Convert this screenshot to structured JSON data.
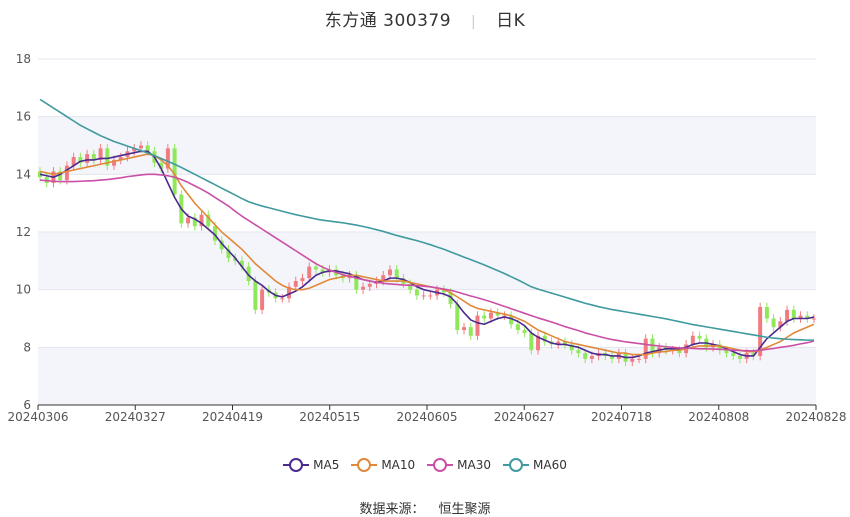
{
  "title": {
    "name": "东方通",
    "code": "300379",
    "period": "日K"
  },
  "source": {
    "label": "数据来源：",
    "value": "恒生聚源"
  },
  "legend": [
    {
      "name": "MA5",
      "color": "#4b2a8f"
    },
    {
      "name": "MA10",
      "color": "#e0893a"
    },
    {
      "name": "MA30",
      "color": "#cc4fa6"
    },
    {
      "name": "MA60",
      "color": "#3f9aa0"
    }
  ],
  "chart_data": {
    "type": "candlestick",
    "x_tick_labels": [
      "20240306",
      "20240327",
      "20240419",
      "20240515",
      "20240605",
      "20240627",
      "20240718",
      "20240808",
      "20240828"
    ],
    "ylim": [
      6,
      18
    ],
    "y_ticks": [
      6,
      8,
      10,
      12,
      14,
      16,
      18
    ],
    "grid": true,
    "legend_position": "bottom",
    "up_color": "#f07c82",
    "down_color": "#8fe85a",
    "candles_close": [
      13.9,
      13.7,
      14.1,
      13.8,
      14.3,
      14.6,
      14.4,
      14.7,
      14.5,
      14.9,
      14.3,
      14.5,
      14.6,
      14.8,
      14.9,
      15.0,
      14.8,
      14.4,
      14.2,
      14.9,
      13.3,
      12.3,
      12.5,
      12.2,
      12.6,
      12.2,
      11.7,
      11.4,
      11.1,
      11.0,
      10.8,
      10.3,
      9.3,
      10.0,
      9.9,
      9.7,
      9.7,
      10.1,
      10.3,
      10.4,
      10.8,
      10.7,
      10.6,
      10.7,
      10.5,
      10.4,
      10.5,
      10.0,
      10.1,
      10.2,
      10.3,
      10.5,
      10.7,
      10.4,
      10.2,
      10.0,
      9.8,
      9.8,
      9.8,
      10.0,
      9.9,
      9.5,
      8.6,
      8.7,
      8.4,
      9.1,
      9.0,
      9.2,
      9.1,
      9.1,
      8.8,
      8.6,
      8.5,
      7.9,
      8.4,
      8.2,
      8.1,
      8.2,
      8.1,
      7.9,
      7.8,
      7.6,
      7.7,
      7.8,
      7.7,
      7.6,
      7.8,
      7.5,
      7.6,
      7.6,
      8.3,
      7.8,
      8.0,
      7.9,
      7.9,
      7.8,
      8.1,
      8.4,
      8.3,
      8.0,
      8.1,
      7.9,
      7.8,
      7.7,
      7.6,
      7.8,
      7.7,
      9.4,
      9.0,
      8.7,
      8.9,
      9.3,
      9.0,
      9.1,
      9.0,
      9.0
    ],
    "series": [
      {
        "name": "MA5",
        "values": [
          14.0,
          13.95,
          13.9,
          14.0,
          14.15,
          14.3,
          14.45,
          14.5,
          14.5,
          14.55,
          14.55,
          14.6,
          14.65,
          14.7,
          14.75,
          14.8,
          14.8,
          14.6,
          14.2,
          13.7,
          13.2,
          12.8,
          12.55,
          12.45,
          12.3,
          12.1,
          11.9,
          11.6,
          11.35,
          11.1,
          10.8,
          10.5,
          10.3,
          10.15,
          9.95,
          9.8,
          9.75,
          9.85,
          9.95,
          10.1,
          10.3,
          10.5,
          10.6,
          10.65,
          10.65,
          10.6,
          10.55,
          10.45,
          10.35,
          10.3,
          10.25,
          10.3,
          10.4,
          10.4,
          10.35,
          10.25,
          10.1,
          10.0,
          9.95,
          9.9,
          9.85,
          9.75,
          9.5,
          9.2,
          8.95,
          8.85,
          8.8,
          8.9,
          9.0,
          9.05,
          9.0,
          8.9,
          8.75,
          8.5,
          8.35,
          8.25,
          8.15,
          8.1,
          8.1,
          8.05,
          8.0,
          7.9,
          7.8,
          7.75,
          7.75,
          7.7,
          7.7,
          7.65,
          7.65,
          7.7,
          7.8,
          7.85,
          7.9,
          7.95,
          7.95,
          7.95,
          8.0,
          8.1,
          8.15,
          8.15,
          8.1,
          8.05,
          7.95,
          7.85,
          7.75,
          7.7,
          7.7,
          8.0,
          8.3,
          8.5,
          8.7,
          8.9,
          9.0,
          9.0,
          9.0,
          9.05
        ]
      },
      {
        "name": "MA10",
        "values": [
          14.1,
          14.05,
          14.0,
          14.05,
          14.1,
          14.15,
          14.2,
          14.25,
          14.3,
          14.35,
          14.4,
          14.45,
          14.5,
          14.55,
          14.6,
          14.65,
          14.7,
          14.65,
          14.5,
          14.3,
          14.0,
          13.6,
          13.3,
          13.0,
          12.75,
          12.5,
          12.25,
          12.0,
          11.8,
          11.6,
          11.4,
          11.15,
          10.9,
          10.7,
          10.5,
          10.3,
          10.15,
          10.05,
          10.0,
          10.0,
          10.05,
          10.15,
          10.25,
          10.35,
          10.4,
          10.45,
          10.5,
          10.5,
          10.45,
          10.4,
          10.35,
          10.3,
          10.3,
          10.3,
          10.3,
          10.25,
          10.2,
          10.15,
          10.1,
          10.05,
          10.0,
          9.9,
          9.75,
          9.6,
          9.45,
          9.35,
          9.3,
          9.25,
          9.2,
          9.15,
          9.1,
          9.0,
          8.9,
          8.75,
          8.6,
          8.5,
          8.4,
          8.3,
          8.2,
          8.15,
          8.1,
          8.05,
          8.0,
          7.95,
          7.9,
          7.85,
          7.8,
          7.8,
          7.75,
          7.75,
          7.75,
          7.8,
          7.85,
          7.85,
          7.9,
          7.9,
          7.95,
          8.0,
          8.05,
          8.05,
          8.05,
          8.05,
          8.0,
          7.95,
          7.9,
          7.85,
          7.85,
          7.9,
          8.0,
          8.1,
          8.2,
          8.35,
          8.5,
          8.6,
          8.7,
          8.8
        ]
      },
      {
        "name": "MA30",
        "values": [
          13.8,
          13.78,
          13.76,
          13.75,
          13.75,
          13.75,
          13.76,
          13.77,
          13.78,
          13.8,
          13.82,
          13.85,
          13.88,
          13.92,
          13.95,
          13.98,
          14.0,
          14.0,
          13.98,
          13.95,
          13.9,
          13.82,
          13.72,
          13.6,
          13.48,
          13.35,
          13.2,
          13.05,
          12.9,
          12.72,
          12.55,
          12.4,
          12.25,
          12.1,
          11.95,
          11.8,
          11.65,
          11.5,
          11.35,
          11.2,
          11.05,
          10.9,
          10.78,
          10.68,
          10.6,
          10.52,
          10.46,
          10.4,
          10.35,
          10.3,
          10.26,
          10.22,
          10.2,
          10.18,
          10.16,
          10.15,
          10.14,
          10.12,
          10.1,
          10.06,
          10.02,
          9.98,
          9.92,
          9.85,
          9.78,
          9.72,
          9.65,
          9.58,
          9.5,
          9.42,
          9.34,
          9.26,
          9.18,
          9.1,
          9.02,
          8.95,
          8.88,
          8.8,
          8.72,
          8.65,
          8.58,
          8.5,
          8.44,
          8.38,
          8.32,
          8.27,
          8.23,
          8.19,
          8.16,
          8.13,
          8.1,
          8.07,
          8.05,
          8.02,
          8.0,
          7.98,
          7.97,
          7.96,
          7.95,
          7.95,
          7.94,
          7.93,
          7.92,
          7.9,
          7.89,
          7.88,
          7.88,
          7.9,
          7.93,
          7.96,
          8.0,
          8.03,
          8.07,
          8.12,
          8.16,
          8.22
        ]
      },
      {
        "name": "MA60",
        "values": [
          16.6,
          16.45,
          16.3,
          16.15,
          16.0,
          15.85,
          15.7,
          15.58,
          15.46,
          15.34,
          15.24,
          15.14,
          15.06,
          14.98,
          14.9,
          14.82,
          14.74,
          14.65,
          14.55,
          14.45,
          14.35,
          14.24,
          14.12,
          14.0,
          13.88,
          13.76,
          13.64,
          13.52,
          13.4,
          13.28,
          13.16,
          13.05,
          12.97,
          12.9,
          12.84,
          12.78,
          12.72,
          12.66,
          12.6,
          12.55,
          12.5,
          12.45,
          12.41,
          12.38,
          12.35,
          12.32,
          12.28,
          12.24,
          12.19,
          12.14,
          12.08,
          12.02,
          11.95,
          11.88,
          11.82,
          11.76,
          11.7,
          11.63,
          11.56,
          11.48,
          11.4,
          11.31,
          11.22,
          11.13,
          11.04,
          10.95,
          10.86,
          10.76,
          10.66,
          10.56,
          10.45,
          10.34,
          10.22,
          10.1,
          10.02,
          9.95,
          9.88,
          9.81,
          9.74,
          9.67,
          9.6,
          9.53,
          9.47,
          9.41,
          9.36,
          9.31,
          9.27,
          9.23,
          9.19,
          9.15,
          9.11,
          9.07,
          9.03,
          8.99,
          8.94,
          8.89,
          8.84,
          8.79,
          8.75,
          8.71,
          8.67,
          8.63,
          8.59,
          8.55,
          8.51,
          8.47,
          8.43,
          8.39,
          8.35,
          8.32,
          8.3,
          8.28,
          8.27,
          8.26,
          8.25,
          8.25
        ]
      }
    ]
  }
}
